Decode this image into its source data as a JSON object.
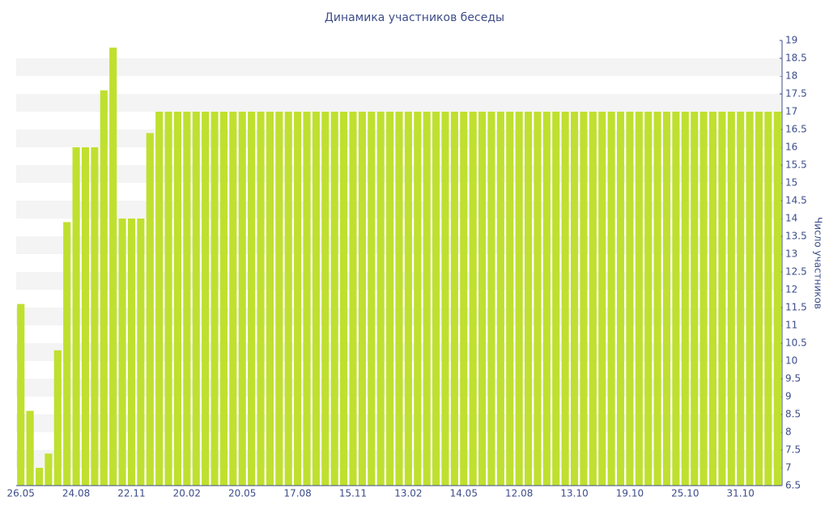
{
  "chart_data": {
    "type": "bar",
    "title": "Динамика участников беседы",
    "y_axis_label": "Число участников",
    "categories": [
      "26.05",
      null,
      null,
      null,
      null,
      null,
      "24.08",
      null,
      null,
      null,
      null,
      null,
      "22.11",
      null,
      null,
      null,
      null,
      null,
      "20.02",
      null,
      null,
      null,
      null,
      null,
      "20.05",
      null,
      null,
      null,
      null,
      null,
      "17.08",
      null,
      null,
      null,
      null,
      null,
      "15.11",
      null,
      null,
      null,
      null,
      null,
      "13.02",
      null,
      null,
      null,
      null,
      null,
      "14.05",
      null,
      null,
      null,
      null,
      null,
      "12.08",
      null,
      null,
      null,
      null,
      null,
      "13.10",
      null,
      null,
      null,
      null,
      null,
      "19.10",
      null,
      null,
      null,
      null,
      null,
      "25.10",
      null,
      null,
      null,
      null,
      null,
      "31.10",
      null,
      null,
      null,
      null
    ],
    "values": [
      11.6,
      8.6,
      7.0,
      7.4,
      10.3,
      13.9,
      16,
      16,
      16,
      17.6,
      18.8,
      14,
      14,
      14,
      16.4,
      17,
      17,
      17,
      17,
      17,
      17,
      17,
      17,
      17,
      17,
      17,
      17,
      17,
      17,
      17,
      17,
      17,
      17,
      17,
      17,
      17,
      17,
      17,
      17,
      17,
      17,
      17,
      17,
      17,
      17,
      17,
      17,
      17,
      17,
      17,
      17,
      17,
      17,
      17,
      17,
      17,
      17,
      17,
      17,
      17,
      17,
      17,
      17,
      17,
      17,
      17,
      17,
      17,
      17,
      17,
      17,
      17,
      17,
      17,
      17,
      17,
      17,
      17,
      17,
      17,
      17,
      17,
      17
    ],
    "color": "#bfe02f",
    "ylim": [
      6.5,
      19
    ],
    "yticks": [
      6.5,
      7,
      7.5,
      8,
      8.5,
      9,
      9.5,
      10,
      10.5,
      11,
      11.5,
      12,
      12.5,
      13,
      13.5,
      14,
      14.5,
      15,
      15.5,
      16,
      16.5,
      17,
      17.5,
      18,
      18.5,
      19
    ],
    "grid": true
  }
}
